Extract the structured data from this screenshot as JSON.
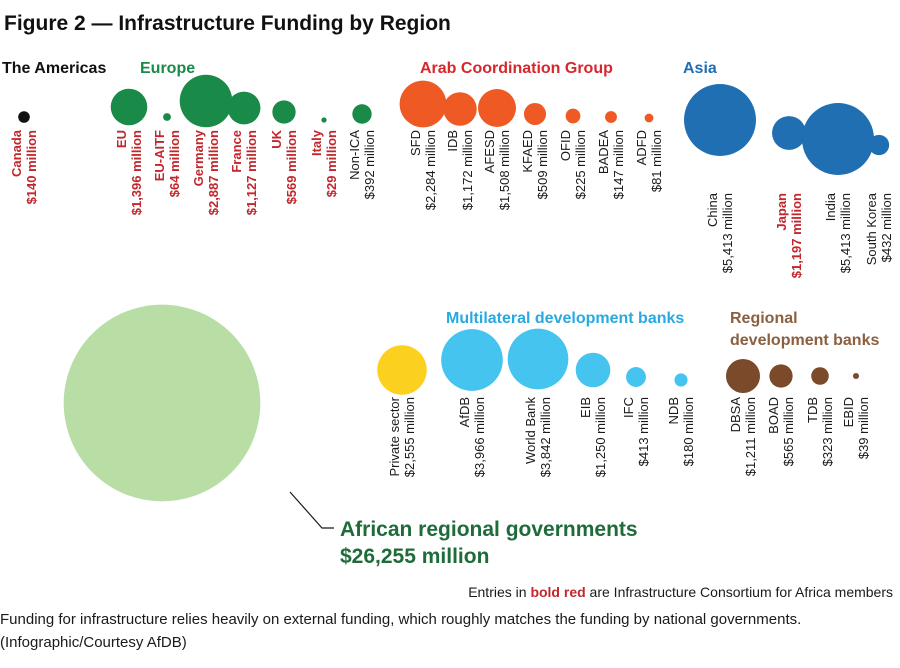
{
  "title": "Figure 2 — Infrastructure Funding by Region",
  "colors": {
    "americas": "#111111",
    "europe": "#1a8a48",
    "europe_title": "#1a8a48",
    "arab": "#ef5a24",
    "arab_title": "#d7262c",
    "asia": "#1f6fb2",
    "asia_title": "#1f6fb2",
    "private": "#fcd01f",
    "multilateral": "#44c4ef",
    "multilateral_title": "#29a9e1",
    "regional": "#7a4a2a",
    "regional_title": "#8a6040",
    "african": "#b8dea6",
    "member_text": "#c1272d"
  },
  "groups": [
    {
      "name": "The Americas",
      "color_key": "americas"
    },
    {
      "name": "Europe",
      "color_key": "europe_title"
    },
    {
      "name": "Arab Coordination Group",
      "color_key": "arab_title"
    },
    {
      "name": "Asia",
      "color_key": "asia_title"
    },
    {
      "name": "Multilateral development banks",
      "color_key": "multilateral_title"
    },
    {
      "name": "Regional development banks",
      "color_key": "regional_title",
      "lines": [
        "Regional",
        "development banks"
      ]
    }
  ],
  "chart_data": {
    "type": "bubble",
    "unit": "$ million",
    "entries": [
      {
        "group": "The Americas",
        "name": "Canada",
        "value": 140,
        "value_label": "$140 million",
        "member": true
      },
      {
        "group": "Europe",
        "name": "EU",
        "value": 1396,
        "value_label": "$1,396 million",
        "member": true
      },
      {
        "group": "Europe",
        "name": "EU-AITF",
        "value": 64,
        "value_label": "$64 million",
        "member": true
      },
      {
        "group": "Europe",
        "name": "Germany",
        "value": 2887,
        "value_label": "$2,887 million",
        "member": true
      },
      {
        "group": "Europe",
        "name": "France",
        "value": 1127,
        "value_label": "$1,127 million",
        "member": true
      },
      {
        "group": "Europe",
        "name": "UK",
        "value": 569,
        "value_label": "$569 million",
        "member": true
      },
      {
        "group": "Europe",
        "name": "Italy",
        "value": 29,
        "value_label": "$29 million",
        "member": true
      },
      {
        "group": "Europe",
        "name": "Non-ICA",
        "value": 392,
        "value_label": "$392 million",
        "member": false
      },
      {
        "group": "Arab Coordination Group",
        "name": "SFD",
        "value": 2284,
        "value_label": "$2,284 million",
        "member": false
      },
      {
        "group": "Arab Coordination Group",
        "name": "IDB",
        "value": 1172,
        "value_label": "$1,172 million",
        "member": false
      },
      {
        "group": "Arab Coordination Group",
        "name": "AFESD",
        "value": 1508,
        "value_label": "$1,508 million",
        "member": false
      },
      {
        "group": "Arab Coordination Group",
        "name": "KFAED",
        "value": 509,
        "value_label": "$509 million",
        "member": false
      },
      {
        "group": "Arab Coordination Group",
        "name": "OFID",
        "value": 225,
        "value_label": "$225 million",
        "member": false
      },
      {
        "group": "Arab Coordination Group",
        "name": "BADEA",
        "value": 147,
        "value_label": "$147 million",
        "member": false
      },
      {
        "group": "Arab Coordination Group",
        "name": "ADFD",
        "value": 81,
        "value_label": "$81 million",
        "member": false
      },
      {
        "group": "Asia",
        "name": "China",
        "value": 5413,
        "value_label": "$5,413 million",
        "member": false
      },
      {
        "group": "Asia",
        "name": "Japan",
        "value": 1197,
        "value_label": "$1,197 million",
        "member": true
      },
      {
        "group": "Asia",
        "name": "India",
        "value": 5413,
        "value_label": "$5,413 million",
        "member": false
      },
      {
        "group": "Asia",
        "name": "South Korea",
        "value": 432,
        "value_label": "$432 million",
        "member": false
      },
      {
        "group": "",
        "name": "Private sector",
        "value": 2555,
        "value_label": "$2,555 million",
        "member": false
      },
      {
        "group": "Multilateral development banks",
        "name": "AfDB",
        "value": 3966,
        "value_label": "$3,966 million",
        "member": false
      },
      {
        "group": "Multilateral development banks",
        "name": "World Bank",
        "value": 3842,
        "value_label": "$3,842 million",
        "member": false
      },
      {
        "group": "Multilateral development banks",
        "name": "EIB",
        "value": 1250,
        "value_label": "$1,250 million",
        "member": false
      },
      {
        "group": "Multilateral development banks",
        "name": "IFC",
        "value": 413,
        "value_label": "$413 million",
        "member": false
      },
      {
        "group": "Multilateral development banks",
        "name": "NDB",
        "value": 180,
        "value_label": "$180 million",
        "member": false
      },
      {
        "group": "Regional development banks",
        "name": "DBSA",
        "value": 1211,
        "value_label": "$1,211 million",
        "member": false
      },
      {
        "group": "Regional development banks",
        "name": "BOAD",
        "value": 565,
        "value_label": "$565 million",
        "member": false
      },
      {
        "group": "Regional development banks",
        "name": "TDB",
        "value": 323,
        "value_label": "$323 million",
        "member": false
      },
      {
        "group": "Regional development banks",
        "name": "EBID",
        "value": 39,
        "value_label": "$39 million",
        "member": false
      },
      {
        "group": "",
        "name": "African regional governments",
        "value": 26255,
        "value_label": "$26,255 million",
        "member": false
      }
    ]
  },
  "legend_note": {
    "prefix": "Entries in ",
    "highlight": "bold red",
    "suffix": " are Infrastructure Consortium for Africa members"
  },
  "caption": "Funding for infrastructure relies heavily on external funding, which roughly matches the funding by national governments. (Infographic/Courtesy AfDB)"
}
